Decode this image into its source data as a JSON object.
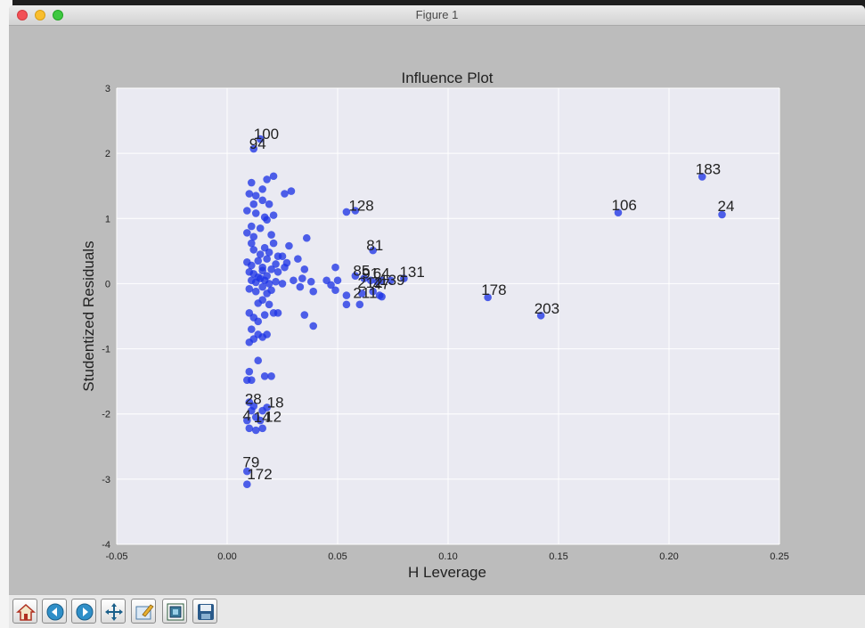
{
  "window": {
    "title": "Figure 1"
  },
  "toolbar": {
    "buttons": [
      {
        "name": "home-button",
        "icon": "home-icon"
      },
      {
        "name": "back-button",
        "icon": "arrow-left-icon"
      },
      {
        "name": "forward-button",
        "icon": "arrow-right-icon"
      },
      {
        "name": "pan-button",
        "icon": "move-icon"
      },
      {
        "name": "zoom-button",
        "icon": "zoom-rect-icon"
      },
      {
        "name": "configure-subplots-button",
        "icon": "subplots-icon"
      },
      {
        "name": "save-button",
        "icon": "save-icon"
      }
    ]
  },
  "colors": {
    "axes_bg": "#eaeaf2",
    "point": "#1f35e6",
    "grid": "#ffffff",
    "figure_bg": "#bcbcbc"
  },
  "chart_data": {
    "type": "scatter",
    "title": "Influence Plot",
    "xlabel": "H Leverage",
    "ylabel": "Studentized Residuals",
    "xlim": [
      -0.05,
      0.25
    ],
    "ylim": [
      -4,
      3
    ],
    "xticks": [
      "-0.05",
      "0.00",
      "0.05",
      "0.10",
      "0.15",
      "0.20",
      "0.25"
    ],
    "yticks": [
      "-4",
      "-3",
      "-2",
      "-1",
      "0",
      "1",
      "2",
      "3"
    ],
    "grid": true,
    "points": [
      [
        0.012,
        2.07
      ],
      [
        0.015,
        2.22
      ],
      [
        0.011,
        1.55
      ],
      [
        0.016,
        1.45
      ],
      [
        0.018,
        1.6
      ],
      [
        0.021,
        1.65
      ],
      [
        0.01,
        1.38
      ],
      [
        0.013,
        1.35
      ],
      [
        0.012,
        1.22
      ],
      [
        0.016,
        1.28
      ],
      [
        0.019,
        1.22
      ],
      [
        0.026,
        1.38
      ],
      [
        0.029,
        1.42
      ],
      [
        0.009,
        1.12
      ],
      [
        0.013,
        1.08
      ],
      [
        0.017,
        1.02
      ],
      [
        0.021,
        1.05
      ],
      [
        0.018,
        0.98
      ],
      [
        0.011,
        0.88
      ],
      [
        0.015,
        0.85
      ],
      [
        0.009,
        0.78
      ],
      [
        0.012,
        0.72
      ],
      [
        0.02,
        0.75
      ],
      [
        0.011,
        0.62
      ],
      [
        0.017,
        0.55
      ],
      [
        0.021,
        0.62
      ],
      [
        0.028,
        0.58
      ],
      [
        0.036,
        0.7
      ],
      [
        0.012,
        0.52
      ],
      [
        0.015,
        0.45
      ],
      [
        0.019,
        0.48
      ],
      [
        0.023,
        0.42
      ],
      [
        0.025,
        0.42
      ],
      [
        0.009,
        0.33
      ],
      [
        0.011,
        0.28
      ],
      [
        0.014,
        0.35
      ],
      [
        0.016,
        0.25
      ],
      [
        0.018,
        0.38
      ],
      [
        0.022,
        0.3
      ],
      [
        0.027,
        0.32
      ],
      [
        0.032,
        0.38
      ],
      [
        0.01,
        0.18
      ],
      [
        0.012,
        0.15
      ],
      [
        0.014,
        0.1
      ],
      [
        0.016,
        0.2
      ],
      [
        0.018,
        0.12
      ],
      [
        0.02,
        0.22
      ],
      [
        0.023,
        0.18
      ],
      [
        0.026,
        0.25
      ],
      [
        0.035,
        0.22
      ],
      [
        0.049,
        0.25
      ],
      [
        0.011,
        0.05
      ],
      [
        0.013,
        0.02
      ],
      [
        0.015,
        0.08
      ],
      [
        0.017,
        0.05
      ],
      [
        0.019,
        0.0
      ],
      [
        0.022,
        0.03
      ],
      [
        0.025,
        0.0
      ],
      [
        0.03,
        0.05
      ],
      [
        0.034,
        0.08
      ],
      [
        0.038,
        0.03
      ],
      [
        0.045,
        0.05
      ],
      [
        0.05,
        0.05
      ],
      [
        0.01,
        -0.08
      ],
      [
        0.013,
        -0.12
      ],
      [
        0.016,
        -0.05
      ],
      [
        0.018,
        -0.15
      ],
      [
        0.02,
        -0.1
      ],
      [
        0.033,
        -0.05
      ],
      [
        0.039,
        -0.12
      ],
      [
        0.047,
        -0.02
      ],
      [
        0.049,
        -0.1
      ],
      [
        0.058,
        0.12
      ],
      [
        0.062,
        0.08
      ],
      [
        0.065,
        0.05
      ],
      [
        0.068,
        0.03
      ],
      [
        0.07,
        0.05
      ],
      [
        0.074,
        0.05
      ],
      [
        0.08,
        0.08
      ],
      [
        0.061,
        -0.15
      ],
      [
        0.066,
        -0.12
      ],
      [
        0.069,
        -0.18
      ],
      [
        0.054,
        -0.18
      ],
      [
        0.054,
        -0.32
      ],
      [
        0.06,
        -0.32
      ],
      [
        0.07,
        -0.2
      ],
      [
        0.014,
        -0.3
      ],
      [
        0.016,
        -0.25
      ],
      [
        0.019,
        -0.32
      ],
      [
        0.01,
        -0.45
      ],
      [
        0.012,
        -0.52
      ],
      [
        0.014,
        -0.58
      ],
      [
        0.017,
        -0.48
      ],
      [
        0.021,
        -0.45
      ],
      [
        0.023,
        -0.45
      ],
      [
        0.035,
        -0.48
      ],
      [
        0.039,
        -0.65
      ],
      [
        0.011,
        -0.7
      ],
      [
        0.014,
        -0.78
      ],
      [
        0.016,
        -0.82
      ],
      [
        0.018,
        -0.78
      ],
      [
        0.012,
        -0.85
      ],
      [
        0.01,
        -0.9
      ],
      [
        0.014,
        -1.18
      ],
      [
        0.01,
        -1.35
      ],
      [
        0.009,
        -1.48
      ],
      [
        0.011,
        -1.48
      ],
      [
        0.017,
        -1.42
      ],
      [
        0.02,
        -1.42
      ],
      [
        0.01,
        -1.82
      ],
      [
        0.012,
        -1.88
      ],
      [
        0.011,
        -1.95
      ],
      [
        0.016,
        -1.95
      ],
      [
        0.018,
        -1.9
      ],
      [
        0.013,
        -2.05
      ],
      [
        0.009,
        -2.1
      ],
      [
        0.015,
        -2.1
      ],
      [
        0.01,
        -2.22
      ],
      [
        0.013,
        -2.25
      ],
      [
        0.016,
        -2.22
      ],
      [
        0.009,
        -2.88
      ],
      [
        0.009,
        -3.08
      ],
      [
        0.054,
        1.1
      ],
      [
        0.058,
        1.12
      ],
      [
        0.066,
        0.51
      ],
      [
        0.118,
        -0.21
      ],
      [
        0.142,
        -0.49
      ],
      [
        0.177,
        1.09
      ],
      [
        0.215,
        1.64
      ],
      [
        0.224,
        1.06
      ]
    ],
    "annotations": [
      {
        "label": "100",
        "x": 0.012,
        "y": 2.22
      },
      {
        "label": "94",
        "x": 0.01,
        "y": 2.07
      },
      {
        "label": "128",
        "x": 0.055,
        "y": 1.12
      },
      {
        "label": "81",
        "x": 0.063,
        "y": 0.51
      },
      {
        "label": "85",
        "x": 0.057,
        "y": 0.12
      },
      {
        "label": "91",
        "x": 0.061,
        "y": 0.08
      },
      {
        "label": "64",
        "x": 0.066,
        "y": 0.08
      },
      {
        "label": "131",
        "x": 0.078,
        "y": 0.1
      },
      {
        "label": "212",
        "x": 0.059,
        "y": -0.06
      },
      {
        "label": "139",
        "x": 0.069,
        "y": -0.02
      },
      {
        "label": "47",
        "x": 0.066,
        "y": -0.08
      },
      {
        "label": "211",
        "x": 0.057,
        "y": -0.22
      },
      {
        "label": "178",
        "x": 0.115,
        "y": -0.17
      },
      {
        "label": "203",
        "x": 0.139,
        "y": -0.46
      },
      {
        "label": "106",
        "x": 0.174,
        "y": 1.13
      },
      {
        "label": "183",
        "x": 0.212,
        "y": 1.68
      },
      {
        "label": "24",
        "x": 0.222,
        "y": 1.11
      },
      {
        "label": "28",
        "x": 0.008,
        "y": -1.85
      },
      {
        "label": "18",
        "x": 0.018,
        "y": -1.9
      },
      {
        "label": "4",
        "x": 0.007,
        "y": -2.1
      },
      {
        "label": "14",
        "x": 0.012,
        "y": -2.13
      },
      {
        "label": "12",
        "x": 0.017,
        "y": -2.12
      },
      {
        "label": "79",
        "x": 0.007,
        "y": -2.82
      },
      {
        "label": "172",
        "x": 0.009,
        "y": -3.0
      }
    ]
  }
}
